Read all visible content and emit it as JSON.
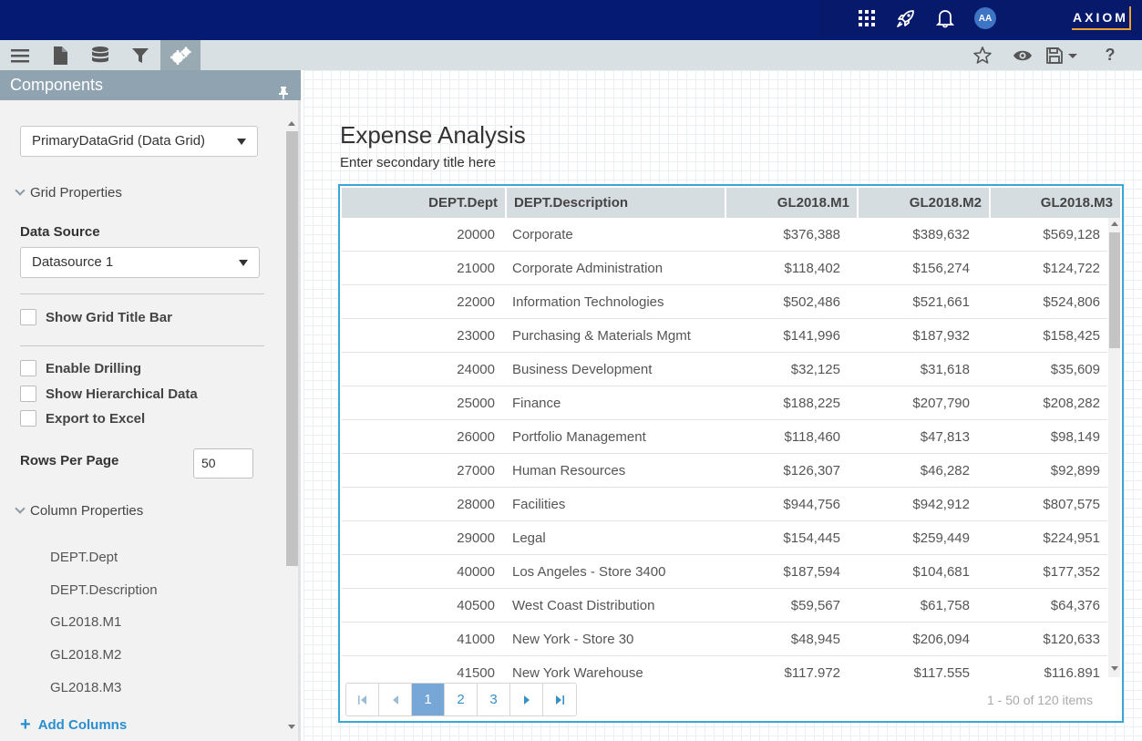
{
  "topbar": {
    "icons": [
      "apps-grid-icon",
      "rocket-icon",
      "bell-icon"
    ],
    "avatar": "AA",
    "brand": "AXIOM"
  },
  "toolbar": {
    "left_icons": [
      "menu-icon",
      "document-icon",
      "database-icon",
      "filter-icon",
      "gears-icon"
    ],
    "active": "gears-icon",
    "right_icons": [
      "star-icon",
      "eye-icon",
      "save-icon",
      "help-icon"
    ],
    "help_label": "?"
  },
  "panel": {
    "title": "Components",
    "component_select": "PrimaryDataGrid (Data Grid)",
    "grid_properties": "Grid Properties",
    "data_source_label": "Data Source",
    "data_source_value": "Datasource 1",
    "show_grid_title_bar": "Show Grid Title Bar",
    "enable_drilling": "Enable Drilling",
    "show_hierarchical": "Show Hierarchical Data",
    "export_excel": "Export to Excel",
    "rows_per_page_label": "Rows Per Page",
    "rows_per_page_value": "50",
    "column_properties": "Column Properties",
    "columns": [
      "DEPT.Dept",
      "DEPT.Description",
      "GL2018.M1",
      "GL2018.M2",
      "GL2018.M3"
    ],
    "add_columns": "Add Columns"
  },
  "main": {
    "title": "Expense Analysis",
    "subtitle": "Enter secondary title here"
  },
  "grid": {
    "headers": [
      "DEPT.Dept",
      "DEPT.Description",
      "GL2018.M1",
      "GL2018.M2",
      "GL2018.M3"
    ],
    "rows": [
      [
        "20000",
        "Corporate",
        "$376,388",
        "$389,632",
        "$569,128"
      ],
      [
        "21000",
        "Corporate Administration",
        "$118,402",
        "$156,274",
        "$124,722"
      ],
      [
        "22000",
        "Information Technologies",
        "$502,486",
        "$521,661",
        "$524,806"
      ],
      [
        "23000",
        "Purchasing & Materials Mgmt",
        "$141,996",
        "$187,932",
        "$158,425"
      ],
      [
        "24000",
        "Business Development",
        "$32,125",
        "$31,618",
        "$35,609"
      ],
      [
        "25000",
        "Finance",
        "$188,225",
        "$207,790",
        "$208,282"
      ],
      [
        "26000",
        "Portfolio Management",
        "$118,460",
        "$47,813",
        "$98,149"
      ],
      [
        "27000",
        "Human Resources",
        "$126,307",
        "$46,282",
        "$92,899"
      ],
      [
        "28000",
        "Facilities",
        "$944,756",
        "$942,912",
        "$807,575"
      ],
      [
        "29000",
        "Legal",
        "$154,445",
        "$259,449",
        "$224,951"
      ],
      [
        "40000",
        "Los Angeles - Store 3400",
        "$187,594",
        "$104,681",
        "$177,352"
      ],
      [
        "40500",
        "West Coast Distribution",
        "$59,567",
        "$61,758",
        "$64,376"
      ],
      [
        "41000",
        "New York - Store 30",
        "$48,945",
        "$206,094",
        "$120,633"
      ],
      [
        "41500",
        "New York Warehouse",
        "$117,972",
        "$117,555",
        "$116,891"
      ]
    ],
    "pager": {
      "pages": [
        "1",
        "2",
        "3"
      ],
      "current": "1",
      "info": "1 - 50 of 120 items"
    }
  }
}
